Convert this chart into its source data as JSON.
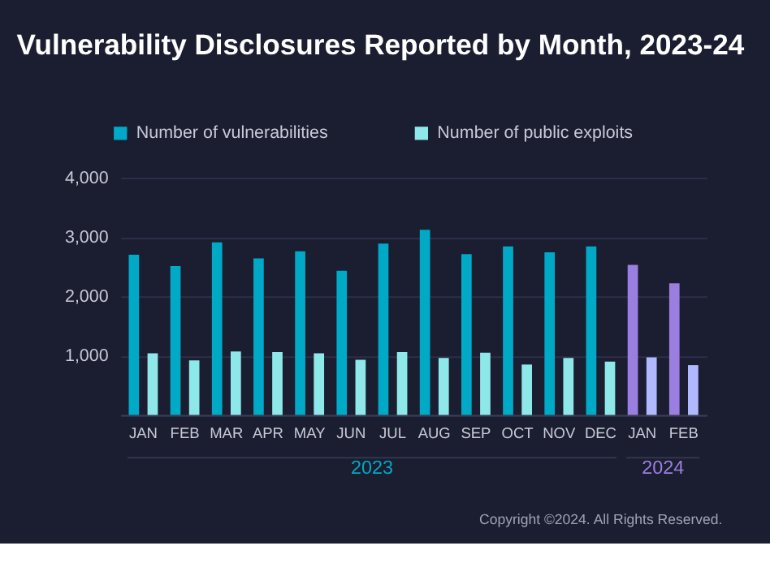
{
  "chart_data": {
    "type": "bar",
    "title": "Vulnerability Disclosures Reported by Month, 2023-24",
    "categories": [
      "JAN",
      "FEB",
      "MAR",
      "APR",
      "MAY",
      "JUN",
      "JUL",
      "AUG",
      "SEP",
      "OCT",
      "NOV",
      "DEC",
      "JAN",
      "FEB"
    ],
    "series": [
      {
        "name": "Number of vulnerabilities",
        "color": "#00a9c6",
        "colors": [
          "#00a9c6",
          "#00a9c6",
          "#00a9c6",
          "#00a9c6",
          "#00a9c6",
          "#00a9c6",
          "#00a9c6",
          "#00a9c6",
          "#00a9c6",
          "#00a9c6",
          "#00a9c6",
          "#00a9c6",
          "#9b7fe0",
          "#9b7fe0"
        ],
        "values": [
          2700,
          2510,
          2910,
          2640,
          2760,
          2430,
          2890,
          3120,
          2710,
          2840,
          2740,
          2840,
          2530,
          2220
        ]
      },
      {
        "name": "Number of public exploits",
        "color": "#8ee8ea",
        "colors": [
          "#8ee8ea",
          "#8ee8ea",
          "#8ee8ea",
          "#8ee8ea",
          "#8ee8ea",
          "#8ee8ea",
          "#8ee8ea",
          "#8ee8ea",
          "#8ee8ea",
          "#8ee8ea",
          "#8ee8ea",
          "#8ee8ea",
          "#b0b8ff",
          "#b0b8ff"
        ],
        "values": [
          1040,
          920,
          1070,
          1060,
          1040,
          930,
          1060,
          960,
          1050,
          850,
          960,
          900,
          970,
          840
        ]
      }
    ],
    "ylim": [
      0,
      4000
    ],
    "yticks": [
      {
        "value": 0,
        "label": null
      },
      {
        "value": 1000,
        "label": "1,000"
      },
      {
        "value": 2000,
        "label": "2,000"
      },
      {
        "value": 3000,
        "label": "3,000"
      },
      {
        "value": 4000,
        "label": "4,000"
      }
    ],
    "grid": "y",
    "legend": "top left",
    "annotations": [
      "2023",
      "2024",
      "Copyright ©2024. All Rights Reserved."
    ]
  }
}
